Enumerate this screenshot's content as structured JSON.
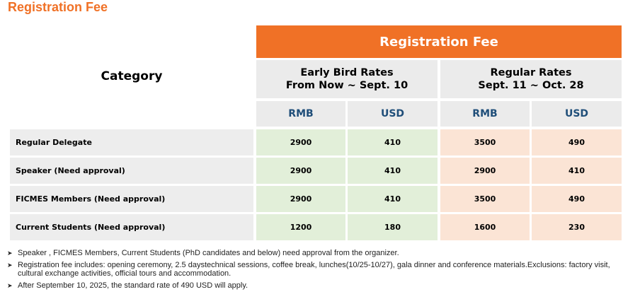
{
  "page_title": "Registration Fee",
  "table": {
    "category_header": "Category",
    "fee_header": "Registration Fee",
    "periods": [
      {
        "line1": "Early Bird Rates",
        "line2": "From Now ~ Sept. 10"
      },
      {
        "line1": "Regular Rates",
        "line2": "Sept. 11 ~ Oct. 28"
      }
    ],
    "currencies": [
      "RMB",
      "USD",
      "RMB",
      "USD"
    ],
    "rows": [
      {
        "label": "Regular Delegate",
        "values": [
          "2900",
          "410",
          "3500",
          "490"
        ]
      },
      {
        "label": "Speaker (Need approval)",
        "values": [
          "2900",
          "410",
          "2900",
          "410"
        ]
      },
      {
        "label": "FICMES Members (Need approval)",
        "values": [
          "2900",
          "410",
          "3500",
          "490"
        ]
      },
      {
        "label": "Current Students (Need approval)",
        "values": [
          "1200",
          "180",
          "1600",
          "230"
        ]
      }
    ]
  },
  "notes": [
    "Speaker , FICMES Members, Current Students (PhD candidates and below) need approval from the organizer.",
    "Registration fee includes: opening ceremony, 2.5 daystechnical sessions, coffee break, lunches(10/25-10/27), gala dinner and conference materials.Exclusions: factory visit, cultural exchange activities, official tours and accommodation.",
    "After September 10, 2025, the standard rate of 490 USD will apply."
  ],
  "colors": {
    "accent": "#f07126",
    "header_gray": "#ebebeb",
    "early_green": "#e2efd9",
    "regular_peach": "#fbe4d5",
    "currency_blue": "#1f4e79"
  }
}
